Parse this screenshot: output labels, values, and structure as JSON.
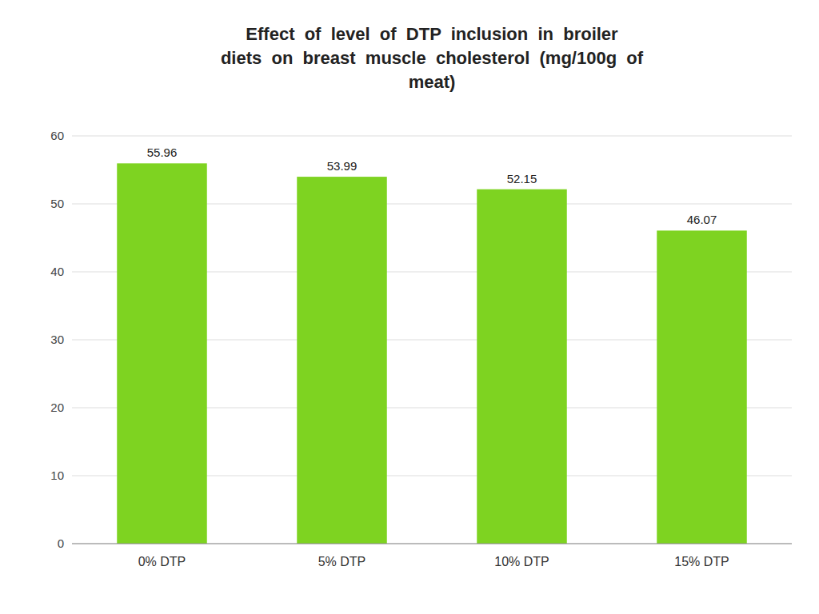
{
  "chart_data": {
    "type": "bar",
    "title": "Effect  of  level  of  DTP  inclusion  in  broiler\ndiets  on  breast  muscle  cholesterol  (mg/100g  of\nmeat)",
    "categories": [
      "0% DTP",
      "5% DTP",
      "10% DTP",
      "15% DTP"
    ],
    "values": [
      55.96,
      53.99,
      52.15,
      46.07
    ],
    "color": "#7ED321",
    "ylim": [
      0,
      60
    ],
    "yticks": [
      0,
      10,
      20,
      30,
      40,
      50,
      60
    ],
    "grid": true,
    "data_labels": true
  }
}
